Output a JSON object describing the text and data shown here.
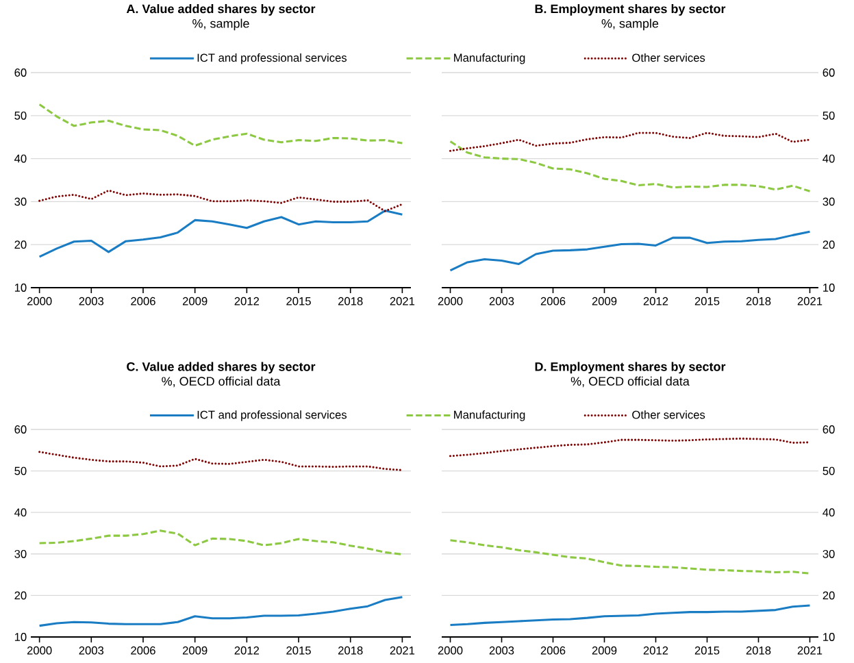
{
  "chart_data": [
    {
      "type": "line",
      "title": "A. Value added shares by sector",
      "subtitle": "%, sample",
      "x": [
        2000,
        2001,
        2002,
        2003,
        2004,
        2005,
        2006,
        2007,
        2008,
        2009,
        2010,
        2011,
        2012,
        2013,
        2014,
        2015,
        2016,
        2017,
        2018,
        2019,
        2020,
        2021
      ],
      "xlim": [
        1999.5,
        2021.5
      ],
      "xticks": [
        2000,
        2003,
        2006,
        2009,
        2012,
        2015,
        2018,
        2021
      ],
      "ylim": [
        10,
        60
      ],
      "yticks": [
        10,
        20,
        30,
        40,
        50,
        60
      ],
      "grid": "y",
      "legend": "top",
      "series": [
        {
          "name": "ICT and professional services",
          "color": "#1a7dc4",
          "line_style": "solid",
          "values": [
            17.2,
            19.1,
            20.7,
            20.9,
            18.3,
            20.8,
            21.2,
            21.7,
            22.8,
            25.7,
            25.4,
            24.7,
            23.9,
            25.4,
            26.4,
            24.7,
            25.4,
            25.2,
            25.2,
            25.4,
            27.9,
            27.0
          ]
        },
        {
          "name": "Manufacturing",
          "color": "#8cc841",
          "line_style": "dashed",
          "values": [
            52.6,
            49.8,
            47.6,
            48.4,
            48.8,
            47.6,
            46.8,
            46.6,
            45.3,
            43.0,
            44.4,
            45.2,
            45.8,
            44.4,
            43.8,
            44.3,
            44.1,
            44.8,
            44.7,
            44.2,
            44.3,
            43.6
          ]
        },
        {
          "name": "Other services",
          "color": "#800000",
          "line_style": "dotted",
          "values": [
            30.2,
            31.2,
            31.6,
            30.6,
            32.6,
            31.5,
            31.9,
            31.6,
            31.7,
            31.3,
            30.1,
            30.1,
            30.3,
            30.1,
            29.7,
            31.0,
            30.5,
            30.0,
            30.0,
            30.3,
            27.8,
            29.4
          ]
        }
      ]
    },
    {
      "type": "line",
      "title": "B. Employment shares by sector",
      "subtitle": "%, sample",
      "x": [
        2000,
        2001,
        2002,
        2003,
        2004,
        2005,
        2006,
        2007,
        2008,
        2009,
        2010,
        2011,
        2012,
        2013,
        2014,
        2015,
        2016,
        2017,
        2018,
        2019,
        2020,
        2021
      ],
      "xlim": [
        1999.5,
        2021.5
      ],
      "xticks": [
        2000,
        2003,
        2006,
        2009,
        2012,
        2015,
        2018,
        2021
      ],
      "ylim": [
        10,
        60
      ],
      "yticks": [
        10,
        20,
        30,
        40,
        50,
        60
      ],
      "grid": "y",
      "series": [
        {
          "color": "#1a7dc4",
          "line_style": "solid",
          "values": [
            14.0,
            15.9,
            16.6,
            16.3,
            15.5,
            17.8,
            18.6,
            18.7,
            18.9,
            19.5,
            20.1,
            20.2,
            19.8,
            21.6,
            21.6,
            20.4,
            20.7,
            20.8,
            21.1,
            21.3,
            22.2,
            23.0
          ]
        },
        {
          "color": "#8cc841",
          "line_style": "dashed",
          "values": [
            44.0,
            41.4,
            40.3,
            40.0,
            39.9,
            39.0,
            37.7,
            37.5,
            36.6,
            35.3,
            34.8,
            33.8,
            34.1,
            33.3,
            33.5,
            33.4,
            33.9,
            33.9,
            33.6,
            32.8,
            33.7,
            32.4
          ]
        },
        {
          "color": "#800000",
          "line_style": "dotted",
          "values": [
            41.8,
            42.4,
            42.9,
            43.6,
            44.4,
            43.0,
            43.5,
            43.7,
            44.5,
            45.0,
            44.9,
            46.0,
            46.0,
            45.1,
            44.8,
            46.0,
            45.3,
            45.2,
            45.0,
            45.8,
            43.9,
            44.4
          ]
        }
      ]
    },
    {
      "type": "line",
      "title": "C. Value added shares by sector",
      "subtitle": "%, OECD official data",
      "x": [
        2000,
        2001,
        2002,
        2003,
        2004,
        2005,
        2006,
        2007,
        2008,
        2009,
        2010,
        2011,
        2012,
        2013,
        2014,
        2015,
        2016,
        2017,
        2018,
        2019,
        2020,
        2021
      ],
      "xlim": [
        1999.5,
        2021.5
      ],
      "xticks": [
        2000,
        2003,
        2006,
        2009,
        2012,
        2015,
        2018,
        2021
      ],
      "ylim": [
        10,
        60
      ],
      "yticks": [
        10,
        20,
        30,
        40,
        50,
        60
      ],
      "grid": "y",
      "legend": "top",
      "series": [
        {
          "name": "ICT and professional services",
          "color": "#1a7dc4",
          "line_style": "solid",
          "values": [
            12.7,
            13.3,
            13.6,
            13.5,
            13.2,
            13.1,
            13.1,
            13.1,
            13.6,
            15.0,
            14.5,
            14.5,
            14.7,
            15.1,
            15.1,
            15.2,
            15.6,
            16.1,
            16.8,
            17.4,
            18.9,
            19.6
          ]
        },
        {
          "name": "Manufacturing",
          "color": "#8cc841",
          "line_style": "dashed",
          "values": [
            32.6,
            32.7,
            33.1,
            33.7,
            34.4,
            34.4,
            34.8,
            35.6,
            34.9,
            32.1,
            33.7,
            33.6,
            33.1,
            32.1,
            32.6,
            33.6,
            33.1,
            32.8,
            32.0,
            31.3,
            30.4,
            29.9
          ]
        },
        {
          "name": "Other services",
          "color": "#800000",
          "line_style": "dotted",
          "values": [
            54.6,
            53.9,
            53.2,
            52.7,
            52.3,
            52.3,
            52.0,
            51.1,
            51.3,
            52.9,
            51.8,
            51.7,
            52.2,
            52.7,
            52.2,
            51.1,
            51.1,
            51.0,
            51.1,
            51.1,
            50.5,
            50.2
          ]
        }
      ]
    },
    {
      "type": "line",
      "title": "D. Employment shares by sector",
      "subtitle": "%, OECD official data",
      "x": [
        2000,
        2001,
        2002,
        2003,
        2004,
        2005,
        2006,
        2007,
        2008,
        2009,
        2010,
        2011,
        2012,
        2013,
        2014,
        2015,
        2016,
        2017,
        2018,
        2019,
        2020,
        2021
      ],
      "xlim": [
        1999.5,
        2021.5
      ],
      "xticks": [
        2000,
        2003,
        2006,
        2009,
        2012,
        2015,
        2018,
        2021
      ],
      "ylim": [
        10,
        60
      ],
      "yticks": [
        10,
        20,
        30,
        40,
        50,
        60
      ],
      "grid": "y",
      "series": [
        {
          "color": "#1a7dc4",
          "line_style": "solid",
          "values": [
            12.9,
            13.1,
            13.4,
            13.6,
            13.8,
            14.0,
            14.2,
            14.3,
            14.6,
            15.0,
            15.1,
            15.2,
            15.6,
            15.8,
            16.0,
            16.0,
            16.1,
            16.1,
            16.3,
            16.5,
            17.3,
            17.6
          ]
        },
        {
          "color": "#8cc841",
          "line_style": "dashed",
          "values": [
            33.3,
            32.8,
            32.1,
            31.6,
            30.9,
            30.4,
            29.8,
            29.2,
            28.9,
            28.0,
            27.2,
            27.1,
            26.9,
            26.8,
            26.5,
            26.2,
            26.1,
            25.9,
            25.8,
            25.6,
            25.7,
            25.3
          ]
        },
        {
          "color": "#800000",
          "line_style": "dotted",
          "values": [
            53.6,
            53.9,
            54.3,
            54.8,
            55.2,
            55.6,
            56.0,
            56.3,
            56.4,
            56.9,
            57.5,
            57.5,
            57.4,
            57.3,
            57.4,
            57.6,
            57.7,
            57.8,
            57.7,
            57.6,
            56.8,
            56.9
          ]
        }
      ]
    }
  ]
}
